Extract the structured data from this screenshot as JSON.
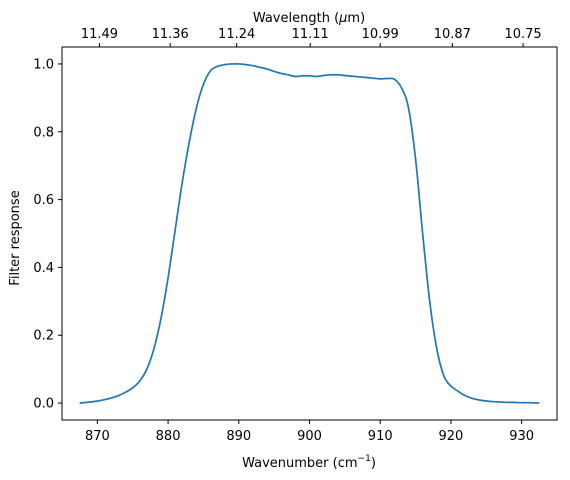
{
  "chart_data": {
    "type": "line",
    "title": "",
    "xlabel": "Wavenumber (cm",
    "xlabel_sup": "−1",
    "xlabel_close": ")",
    "ylabel": "Filter response",
    "top_xlabel": "Wavelength (",
    "top_xlabel_mu": "μ",
    "top_xlabel_end": "m)",
    "xlim": [
      865,
      935
    ],
    "ylim": [
      -0.05,
      1.05
    ],
    "grid": false,
    "x_ticks": [
      870,
      880,
      890,
      900,
      910,
      920,
      930
    ],
    "x_tick_labels": [
      "870",
      "880",
      "890",
      "900",
      "910",
      "920",
      "930"
    ],
    "y_ticks": [
      0.0,
      0.2,
      0.4,
      0.6,
      0.8,
      1.0
    ],
    "y_tick_labels": [
      "0.0",
      "0.2",
      "0.4",
      "0.6",
      "0.8",
      "1.0"
    ],
    "top_ticks": [
      870.3,
      880.3,
      889.7,
      900.1,
      910.0,
      920.2,
      930.2
    ],
    "top_tick_labels": [
      "11.49",
      "11.36",
      "11.24",
      "11.11",
      "10.99",
      "10.87",
      "10.75"
    ],
    "series": [
      {
        "color": "#1f77b4",
        "x": [
          867.5,
          869,
          870,
          871,
          872,
          873,
          874,
          875,
          876,
          877,
          878,
          879,
          880,
          881,
          882,
          883,
          884,
          885,
          886,
          887,
          888,
          889,
          890,
          891,
          892,
          893,
          894,
          895,
          896,
          897,
          898,
          899,
          900,
          901,
          902,
          903,
          904,
          905,
          906,
          907,
          908,
          909,
          910,
          911,
          912,
          913,
          914,
          915,
          916,
          917,
          918,
          919,
          920,
          921,
          922,
          923,
          924,
          925,
          926,
          927,
          928,
          929,
          930,
          931,
          932.5
        ],
        "y": [
          0.0,
          0.003,
          0.006,
          0.01,
          0.015,
          0.022,
          0.032,
          0.045,
          0.065,
          0.1,
          0.16,
          0.25,
          0.37,
          0.51,
          0.65,
          0.77,
          0.87,
          0.94,
          0.98,
          0.993,
          0.998,
          1.0,
          1.0,
          0.998,
          0.995,
          0.99,
          0.985,
          0.978,
          0.972,
          0.968,
          0.963,
          0.965,
          0.965,
          0.963,
          0.966,
          0.968,
          0.968,
          0.966,
          0.964,
          0.962,
          0.96,
          0.958,
          0.956,
          0.957,
          0.955,
          0.93,
          0.87,
          0.72,
          0.5,
          0.3,
          0.16,
          0.08,
          0.05,
          0.035,
          0.022,
          0.014,
          0.009,
          0.006,
          0.004,
          0.003,
          0.002,
          0.002,
          0.001,
          0.001,
          0.0
        ]
      }
    ]
  }
}
